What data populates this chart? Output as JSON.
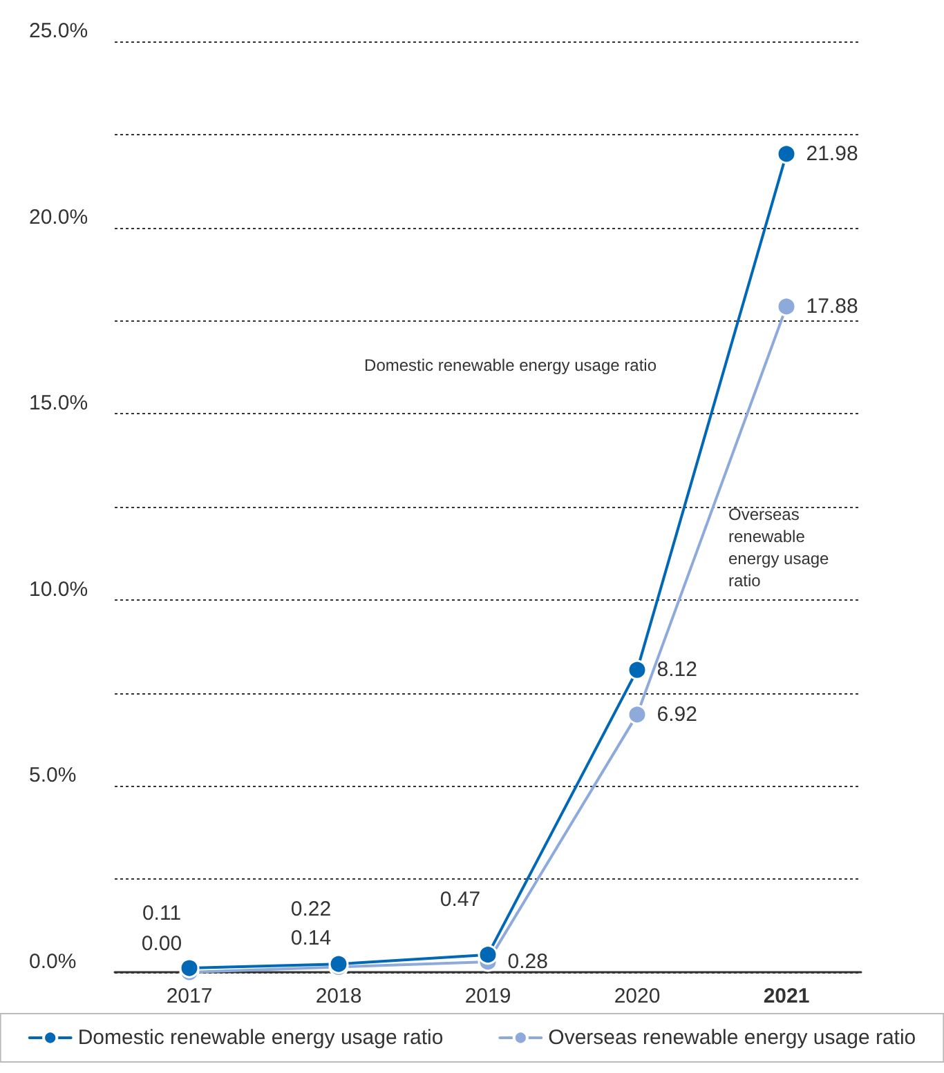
{
  "chart_data": {
    "type": "line",
    "categories": [
      "2017",
      "2018",
      "2019",
      "2020",
      "2021"
    ],
    "series": [
      {
        "name": "Domestic renewable energy usage ratio",
        "color": "#0068b5",
        "values": [
          0.11,
          0.22,
          0.47,
          8.12,
          21.98
        ],
        "value_labels": [
          "0.11",
          "0.22",
          "0.47",
          "8.12",
          "21.98"
        ]
      },
      {
        "name": "Overseas renewable energy usage ratio",
        "color": "#8eaadb",
        "values": [
          0.0,
          0.14,
          0.28,
          6.92,
          17.88
        ],
        "value_labels": [
          "0.00",
          "0.14",
          "0.28",
          "6.92",
          "17.88"
        ]
      }
    ],
    "ylim": [
      0,
      25
    ],
    "yticks": [
      {
        "value": 0,
        "label": "0.0%"
      },
      {
        "value": 2.5,
        "label": null
      },
      {
        "value": 5,
        "label": "5.0%"
      },
      {
        "value": 7.5,
        "label": null
      },
      {
        "value": 10,
        "label": "10.0%"
      },
      {
        "value": 12.5,
        "label": null
      },
      {
        "value": 15,
        "label": "15.0%"
      },
      {
        "value": 17.5,
        "label": null
      },
      {
        "value": 20,
        "label": "20.0%"
      },
      {
        "value": 22.5,
        "label": null
      },
      {
        "value": 25,
        "label": "25.0%"
      }
    ],
    "annotations": [
      "Domestic renewable energy usage ratio",
      "Overseas renewable energy usage ratio"
    ],
    "grid": "y",
    "legend": "bottom",
    "marker": "circle",
    "line_style": "solid"
  }
}
